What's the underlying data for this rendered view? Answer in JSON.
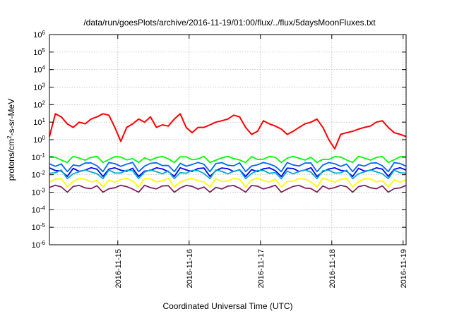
{
  "chart_data": {
    "type": "line",
    "title": "/data/run/goesPlots/archive/2016-11-19/01:00/flux/../flux/5daysMoonFluxes.txt",
    "xlabel": "Coordinated Universal Time (UTC)",
    "ylabel": "protons/cm2-s-sr-MeV",
    "ylabel_parts": {
      "before": "protons/cm",
      "sup": "2",
      "after": "-s-sr-MeV"
    },
    "yscale": "log",
    "ylim": [
      1e-06,
      1000000.0
    ],
    "xlim": [
      "2016-11-14T01:00",
      "2016-11-19T01:00"
    ],
    "x_ticks": [
      "2016-11-15",
      "2016-11-16",
      "2016-11-17",
      "2016-11-18",
      "2016-11-19"
    ],
    "y_ticks": [
      {
        "base": "10",
        "exp": "-6",
        "value": 1e-06
      },
      {
        "base": "10",
        "exp": "-5",
        "value": 1e-05
      },
      {
        "base": "10",
        "exp": "-4",
        "value": 0.0001
      },
      {
        "base": "10",
        "exp": "-3",
        "value": 0.001
      },
      {
        "base": "10",
        "exp": "-2",
        "value": 0.01
      },
      {
        "base": "10",
        "exp": "-1",
        "value": 0.1
      },
      {
        "base": "10",
        "exp": "0",
        "value": 1
      },
      {
        "base": "10",
        "exp": "1",
        "value": 10
      },
      {
        "base": "10",
        "exp": "2",
        "value": 100
      },
      {
        "base": "10",
        "exp": "3",
        "value": 1000
      },
      {
        "base": "10",
        "exp": "4",
        "value": 10000
      },
      {
        "base": "10",
        "exp": "5",
        "value": 100000
      },
      {
        "base": "10",
        "exp": "6",
        "value": 1000000
      }
    ],
    "grid": true,
    "series": [
      {
        "color": "#ff0000",
        "x": [
          "2016-11-14T01:00",
          "2016-11-14T03:00",
          "2016-11-14T05:00",
          "2016-11-14T07:00",
          "2016-11-14T09:00",
          "2016-11-14T11:00",
          "2016-11-14T13:00",
          "2016-11-14T15:00",
          "2016-11-14T17:00",
          "2016-11-14T19:00",
          "2016-11-14T21:00",
          "2016-11-14T23:00",
          "2016-11-15T01:00",
          "2016-11-15T03:00",
          "2016-11-15T05:00",
          "2016-11-15T07:00",
          "2016-11-15T09:00",
          "2016-11-15T11:00",
          "2016-11-15T13:00",
          "2016-11-15T15:00",
          "2016-11-15T17:00",
          "2016-11-15T19:00",
          "2016-11-15T21:00",
          "2016-11-15T23:00",
          "2016-11-16T01:00",
          "2016-11-16T03:00",
          "2016-11-16T05:00",
          "2016-11-16T07:00",
          "2016-11-16T09:00",
          "2016-11-16T11:00",
          "2016-11-16T13:00",
          "2016-11-16T15:00",
          "2016-11-16T17:00",
          "2016-11-16T19:00",
          "2016-11-16T21:00",
          "2016-11-16T23:00",
          "2016-11-17T01:00",
          "2016-11-17T03:00",
          "2016-11-17T05:00",
          "2016-11-17T07:00",
          "2016-11-17T09:00",
          "2016-11-17T11:00",
          "2016-11-17T13:00",
          "2016-11-17T15:00",
          "2016-11-17T17:00",
          "2016-11-17T19:00",
          "2016-11-17T21:00",
          "2016-11-17T23:00",
          "2016-11-18T01:00",
          "2016-11-18T03:00",
          "2016-11-18T05:00",
          "2016-11-18T07:00",
          "2016-11-18T09:00",
          "2016-11-18T11:00",
          "2016-11-18T13:00",
          "2016-11-18T15:00",
          "2016-11-18T17:00",
          "2016-11-18T19:00",
          "2016-11-18T21:00",
          "2016-11-18T23:00",
          "2016-11-19T01:00"
        ],
        "values": [
          1.5,
          30,
          20,
          8,
          5,
          10,
          8,
          15,
          20,
          30,
          25,
          5,
          0.8,
          5,
          8,
          15,
          10,
          20,
          5,
          7,
          6,
          15,
          30,
          5,
          2.5,
          5,
          5,
          7,
          10,
          12,
          15,
          25,
          20,
          5,
          2,
          3,
          12,
          8,
          6,
          4,
          2,
          3,
          5,
          8,
          10,
          15,
          5,
          1,
          0.3,
          2,
          2.5,
          3,
          4,
          5,
          6,
          10,
          12,
          5,
          2.5,
          2,
          1.5
        ]
      },
      {
        "color": "#00ff00",
        "values": 0.09,
        "dip": 0.05
      },
      {
        "color": "#0000ff",
        "values": 0.02,
        "dip": 0.008
      },
      {
        "color": "#0066ff",
        "values": 0.04,
        "dip": 0.015
      },
      {
        "color": "#00aacc",
        "values": 0.015,
        "dip": 0.006
      },
      {
        "color": "#ffff00",
        "values": 0.005,
        "dip": 0.002
      },
      {
        "color": "#802060",
        "values": 0.002,
        "dip": 0.001
      }
    ]
  }
}
